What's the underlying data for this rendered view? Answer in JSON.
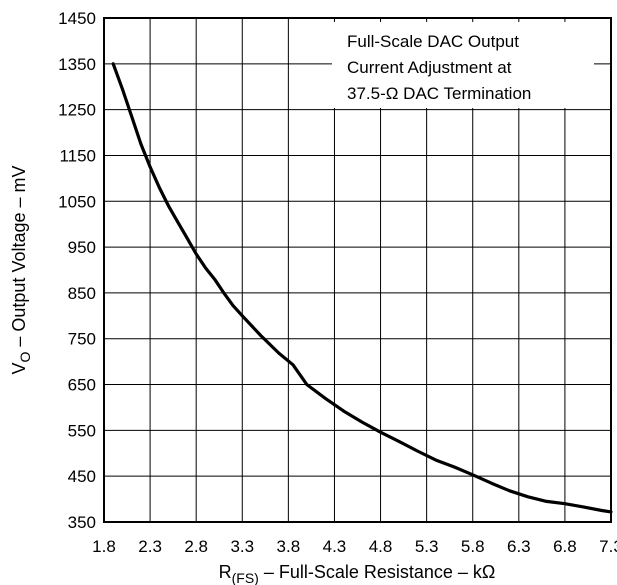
{
  "chart_data": {
    "type": "line",
    "x_ticks": [
      "1.8",
      "2.3",
      "2.8",
      "3.3",
      "3.8",
      "4.3",
      "4.8",
      "5.3",
      "5.8",
      "6.3",
      "6.8",
      "7.3"
    ],
    "y_ticks": [
      "350",
      "450",
      "550",
      "650",
      "750",
      "850",
      "950",
      "1050",
      "1150",
      "1250",
      "1350",
      "1450"
    ],
    "xlim": [
      1.8,
      7.3
    ],
    "ylim": [
      350,
      1450
    ],
    "grid": true,
    "xlabel": {
      "prefix": "R",
      "subscript": "(FS)",
      "suffix": " – Full-Scale Resistance – kΩ"
    },
    "ylabel": {
      "prefix": "V",
      "subscript": "O",
      "suffix": " – Output Voltage – mV"
    },
    "annotation": [
      "Full-Scale DAC Output",
      "Current Adjustment at",
      "37.5-Ω DAC Termination"
    ],
    "series": [
      {
        "color": "#000000",
        "points": [
          [
            1.9,
            1350
          ],
          [
            2.0,
            1295
          ],
          [
            2.1,
            1235
          ],
          [
            2.2,
            1175
          ],
          [
            2.3,
            1125
          ],
          [
            2.4,
            1080
          ],
          [
            2.5,
            1040
          ],
          [
            2.6,
            1005
          ],
          [
            2.7,
            970
          ],
          [
            2.8,
            935
          ],
          [
            2.9,
            905
          ],
          [
            3.0,
            880
          ],
          [
            3.1,
            850
          ],
          [
            3.2,
            822
          ],
          [
            3.3,
            800
          ],
          [
            3.5,
            757
          ],
          [
            3.7,
            718
          ],
          [
            3.85,
            693
          ],
          [
            4.0,
            650
          ],
          [
            4.2,
            620
          ],
          [
            4.4,
            592
          ],
          [
            4.6,
            568
          ],
          [
            4.8,
            546
          ],
          [
            5.0,
            526
          ],
          [
            5.2,
            505
          ],
          [
            5.4,
            485
          ],
          [
            5.6,
            470
          ],
          [
            5.8,
            453
          ],
          [
            6.0,
            435
          ],
          [
            6.2,
            418
          ],
          [
            6.4,
            405
          ],
          [
            6.6,
            395
          ],
          [
            6.8,
            390
          ],
          [
            7.0,
            383
          ],
          [
            7.2,
            375
          ],
          [
            7.3,
            372
          ]
        ]
      }
    ]
  }
}
